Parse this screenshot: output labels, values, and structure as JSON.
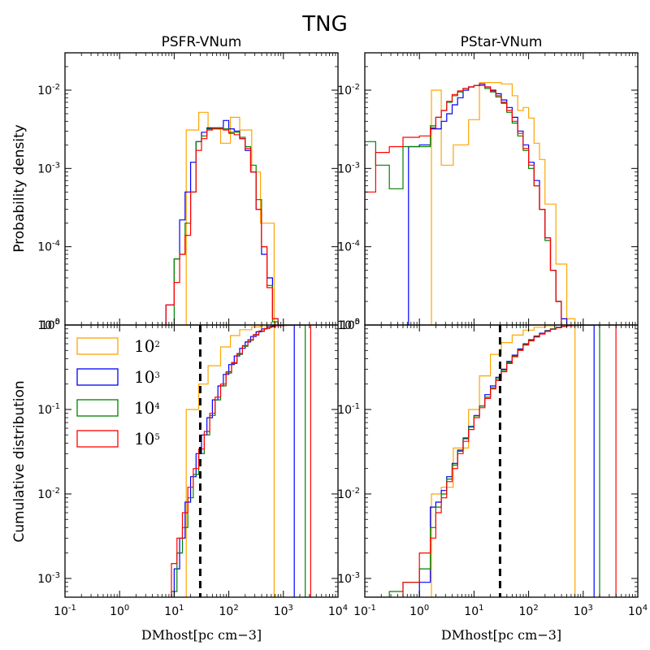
{
  "figure_title": "TNG",
  "panel_titles": [
    "PSFR-VNum",
    "PStar-VNum"
  ],
  "ylabel_top": "Probability density",
  "ylabel_bottom": "Cumulative distribution",
  "xlabel": "DMhost[pc cm−3]",
  "x_ticks": [
    {
      "base": "10",
      "exp": "-1"
    },
    {
      "base": "10",
      "exp": "0"
    },
    {
      "base": "10",
      "exp": "1"
    },
    {
      "base": "10",
      "exp": "2"
    },
    {
      "base": "10",
      "exp": "3"
    },
    {
      "base": "10",
      "exp": "4"
    }
  ],
  "pdf_y_ticks": [
    {
      "base": "10",
      "exp": "-2"
    },
    {
      "base": "10",
      "exp": "-3"
    },
    {
      "base": "10",
      "exp": "-4"
    },
    {
      "base": "10",
      "exp": "-5"
    }
  ],
  "cdf_y_ticks": [
    {
      "base": "10",
      "exp": "0"
    },
    {
      "base": "10",
      "exp": "-1"
    },
    {
      "base": "10",
      "exp": "-2"
    },
    {
      "base": "10",
      "exp": "-3"
    }
  ],
  "legend": [
    {
      "base": "10",
      "exp": "2",
      "color": "#ffa500"
    },
    {
      "base": "10",
      "exp": "3",
      "color": "#0000ff"
    },
    {
      "base": "10",
      "exp": "4",
      "color": "#008000"
    },
    {
      "base": "10",
      "exp": "5",
      "color": "#ff0000"
    }
  ],
  "chart_data": {
    "type": "step-histogram",
    "x_scale": "log",
    "y_scale": "log",
    "xlim": [
      0.1,
      10000
    ],
    "pdf_ylim": [
      1e-05,
      0.03
    ],
    "cdf_ylim": [
      0.0006,
      1.0
    ],
    "vline_x": 30,
    "panels": [
      {
        "title": "PSFR-VNum",
        "pdf": [
          {
            "name": "10^2",
            "color": "#ffa500",
            "edges": [
              1.22,
              1.45,
              1.62,
              1.85,
              2.03,
              2.2,
              2.42,
              2.58,
              2.83
            ],
            "values": [
              0.0031,
              0.0052,
              0.0032,
              0.0021,
              0.0045,
              0.0031,
              0.0009,
              0.0002
            ]
          },
          {
            "name": "10^3",
            "color": "#0000ff",
            "edges": [
              0.85,
              1.0,
              1.1,
              1.2,
              1.3,
              1.4,
              1.5,
              1.6,
              1.7,
              1.8,
              1.9,
              2.0,
              2.1,
              2.2,
              2.3,
              2.4,
              2.5,
              2.6,
              2.7,
              2.8,
              2.9,
              3.0,
              3.12
            ],
            "values": [
              1.8e-05,
              7e-05,
              0.00022,
              0.0005,
              0.0012,
              0.0022,
              0.0029,
              0.0033,
              0.0033,
              0.0033,
              0.0041,
              0.0032,
              0.003,
              0.0024,
              0.0017,
              0.0009,
              0.0003,
              8e-05,
              4e-05,
              1.2e-05,
              6e-06,
              2e-06
            ]
          },
          {
            "name": "10^4",
            "color": "#008000",
            "edges": [
              0.85,
              1.0,
              1.1,
              1.2,
              1.3,
              1.4,
              1.5,
              1.6,
              1.7,
              1.8,
              1.9,
              2.0,
              2.1,
              2.2,
              2.3,
              2.4,
              2.5,
              2.6,
              2.7,
              2.8,
              2.9,
              3.0,
              3.13
            ],
            "values": [
              6e-06,
              7e-05,
              8e-05,
              0.0002,
              0.0005,
              0.0022,
              0.0026,
              0.0032,
              0.0033,
              0.0033,
              0.0032,
              0.0029,
              0.0029,
              0.0025,
              0.0019,
              0.0011,
              0.0004,
              0.0001,
              3.2e-05,
              1.1e-05,
              2e-06,
              1.5e-06
            ]
          },
          {
            "name": "10^5",
            "color": "#ff0000",
            "edges": [
              0.85,
              1.0,
              1.1,
              1.2,
              1.3,
              1.4,
              1.5,
              1.6,
              1.7,
              1.8,
              1.9,
              2.0,
              2.1,
              2.2,
              2.3,
              2.4,
              2.5,
              2.6,
              2.7,
              2.8,
              2.9,
              3.0,
              3.12
            ],
            "values": [
              1.8e-05,
              3.5e-05,
              8e-05,
              0.00014,
              0.0005,
              0.0017,
              0.0024,
              0.0031,
              0.0032,
              0.0032,
              0.0031,
              0.0028,
              0.0027,
              0.0024,
              0.0018,
              0.0009,
              0.0003,
              0.0001,
              3e-05,
              1.2e-05,
              3.5e-06,
              2e-06
            ]
          }
        ],
        "cdf": [
          {
            "name": "10^2",
            "color": "#ffa500",
            "edges": [
              1.22,
              1.45,
              1.62,
              1.85,
              2.03,
              2.2,
              2.42,
              2.58,
              2.83
            ],
            "values": [
              0.1,
              0.2,
              0.33,
              0.55,
              0.75,
              0.88,
              0.95,
              0.98
            ]
          },
          {
            "name": "10^3",
            "color": "#0000ff",
            "edges": [
              1.0,
              1.1,
              1.2,
              1.3,
              1.4,
              1.5,
              1.6,
              1.7,
              1.8,
              1.9,
              2.0,
              2.1,
              2.2,
              2.3,
              2.4,
              2.5,
              2.6,
              2.7,
              2.8,
              2.9,
              3.0,
              3.1,
              3.2
            ],
            "values": [
              0.0013,
              0.003,
              0.008,
              0.016,
              0.03,
              0.05,
              0.08,
              0.13,
              0.19,
              0.26,
              0.34,
              0.43,
              0.53,
              0.63,
              0.73,
              0.83,
              0.9,
              0.95,
              0.98,
              0.99,
              0.997,
              1.0
            ]
          },
          {
            "name": "10^4",
            "color": "#008000",
            "edges": [
              0.95,
              1.05,
              1.15,
              1.25,
              1.35,
              1.45,
              1.55,
              1.65,
              1.75,
              1.85,
              1.95,
              2.05,
              2.15,
              2.25,
              2.35,
              2.45,
              2.55,
              2.65,
              2.75,
              2.85,
              2.95,
              3.05,
              3.15,
              3.4
            ],
            "values": [
              0.0007,
              0.002,
              0.004,
              0.009,
              0.017,
              0.03,
              0.05,
              0.085,
              0.13,
              0.19,
              0.27,
              0.35,
              0.45,
              0.56,
              0.66,
              0.76,
              0.84,
              0.91,
              0.95,
              0.98,
              0.99,
              0.997,
              1.0
            ]
          },
          {
            "name": "10^5",
            "color": "#ff0000",
            "edges": [
              0.95,
              1.05,
              1.15,
              1.25,
              1.35,
              1.45,
              1.55,
              1.65,
              1.75,
              1.85,
              1.95,
              2.05,
              2.15,
              2.25,
              2.35,
              2.45,
              2.55,
              2.65,
              2.75,
              2.85,
              2.95,
              3.05,
              3.15,
              3.25,
              3.5
            ],
            "values": [
              0.0015,
              0.003,
              0.006,
              0.012,
              0.02,
              0.034,
              0.055,
              0.09,
              0.14,
              0.2,
              0.28,
              0.36,
              0.46,
              0.57,
              0.67,
              0.77,
              0.85,
              0.91,
              0.95,
              0.98,
              0.99,
              0.996,
              0.999,
              1.0
            ]
          }
        ]
      },
      {
        "title": "PStar-VNum",
        "pdf": [
          {
            "name": "10^2",
            "color": "#ffa500",
            "edges": [
              0.22,
              0.4,
              0.62,
              0.9,
              1.1,
              1.3,
              1.5,
              1.7,
              1.8,
              1.9,
              2.0,
              2.1,
              2.2,
              2.3,
              2.5,
              2.7,
              2.85
            ],
            "values": [
              0.01,
              0.0011,
              0.002,
              0.0042,
              0.0125,
              0.0125,
              0.012,
              0.0085,
              0.0055,
              0.006,
              0.0044,
              0.0021,
              0.0013,
              0.00035,
              6e-05,
              1.2e-05
            ]
          },
          {
            "name": "10^3",
            "color": "#0000ff",
            "edges": [
              -0.2,
              0.0,
              0.2,
              0.4,
              0.5,
              0.6,
              0.7,
              0.8,
              0.9,
              1.0,
              1.1,
              1.2,
              1.3,
              1.4,
              1.5,
              1.6,
              1.7,
              1.8,
              1.9,
              2.0,
              2.1,
              2.2,
              2.3,
              2.4,
              2.5,
              2.6,
              2.7,
              2.8,
              2.85
            ],
            "values": [
              0.0019,
              0.002,
              0.0032,
              0.004,
              0.005,
              0.0065,
              0.008,
              0.01,
              0.011,
              0.0115,
              0.012,
              0.011,
              0.01,
              0.009,
              0.0075,
              0.006,
              0.0045,
              0.003,
              0.002,
              0.0012,
              0.0007,
              0.0003,
              0.00013,
              5e-05,
              2e-05,
              1.2e-05,
              5e-06,
              2e-06
            ]
          },
          {
            "name": "10^4",
            "color": "#008000",
            "edges": [
              -1.0,
              -0.8,
              -0.55,
              -0.3,
              0.0,
              0.2,
              0.3,
              0.4,
              0.5,
              0.6,
              0.7,
              0.8,
              0.9,
              1.0,
              1.1,
              1.2,
              1.3,
              1.4,
              1.5,
              1.6,
              1.7,
              1.8,
              1.9,
              2.0,
              2.1,
              2.2,
              2.3,
              2.4,
              2.5,
              2.6,
              2.7,
              2.8,
              3.0
            ],
            "values": [
              0.0022,
              0.0011,
              0.00055,
              0.0019,
              0.0019,
              0.0035,
              0.0045,
              0.0055,
              0.007,
              0.0085,
              0.0095,
              0.0105,
              0.011,
              0.0115,
              0.0115,
              0.0105,
              0.0095,
              0.0082,
              0.0068,
              0.0052,
              0.0038,
              0.0026,
              0.0017,
              0.001,
              0.0006,
              0.0003,
              0.00012,
              5e-05,
              2e-05,
              7e-06,
              3e-06,
              1e-06
            ]
          },
          {
            "name": "10^5",
            "color": "#ff0000",
            "edges": [
              -1.0,
              -0.8,
              -0.55,
              -0.3,
              0.0,
              0.2,
              0.3,
              0.4,
              0.5,
              0.6,
              0.7,
              0.8,
              0.9,
              1.0,
              1.1,
              1.2,
              1.3,
              1.4,
              1.5,
              1.6,
              1.7,
              1.8,
              1.9,
              2.0,
              2.1,
              2.2,
              2.3,
              2.4,
              2.5,
              2.6,
              2.7,
              2.8,
              3.0
            ],
            "values": [
              0.0005,
              0.0016,
              0.0019,
              0.0025,
              0.0026,
              0.0033,
              0.0045,
              0.0055,
              0.0072,
              0.0088,
              0.0098,
              0.0105,
              0.011,
              0.0115,
              0.0115,
              0.011,
              0.0098,
              0.0085,
              0.007,
              0.0055,
              0.004,
              0.0028,
              0.0018,
              0.0011,
              0.0006,
              0.0003,
              0.00013,
              5e-05,
              2e-05,
              7e-06,
              3e-06,
              1e-06
            ]
          }
        ],
        "cdf": [
          {
            "name": "10^2",
            "color": "#ffa500",
            "edges": [
              0.22,
              0.4,
              0.62,
              0.9,
              1.1,
              1.3,
              1.5,
              1.7,
              1.9,
              2.1,
              2.3,
              2.5,
              2.7,
              2.85
            ],
            "values": [
              0.01,
              0.012,
              0.035,
              0.1,
              0.25,
              0.45,
              0.62,
              0.76,
              0.87,
              0.94,
              0.98,
              0.995,
              1.0
            ]
          },
          {
            "name": "10^3",
            "color": "#0000ff",
            "edges": [
              0.0,
              0.2,
              0.3,
              0.4,
              0.5,
              0.6,
              0.7,
              0.8,
              0.9,
              1.0,
              1.1,
              1.2,
              1.3,
              1.4,
              1.5,
              1.6,
              1.7,
              1.8,
              1.9,
              2.0,
              2.1,
              2.2,
              2.3,
              2.4,
              2.5,
              2.6,
              2.7,
              2.8,
              2.9,
              3.0,
              3.2
            ],
            "values": [
              0.0009,
              0.007,
              0.008,
              0.011,
              0.016,
              0.023,
              0.033,
              0.046,
              0.063,
              0.085,
              0.11,
              0.15,
              0.19,
              0.24,
              0.3,
              0.37,
              0.44,
              0.52,
              0.6,
              0.67,
              0.74,
              0.8,
              0.86,
              0.9,
              0.94,
              0.96,
              0.98,
              0.99,
              0.996,
              1.0
            ]
          },
          {
            "name": "10^4",
            "color": "#008000",
            "edges": [
              -1.0,
              -0.55,
              -0.3,
              0.0,
              0.2,
              0.3,
              0.4,
              0.5,
              0.6,
              0.7,
              0.8,
              0.9,
              1.0,
              1.1,
              1.2,
              1.3,
              1.4,
              1.5,
              1.6,
              1.7,
              1.8,
              1.9,
              2.0,
              2.1,
              2.2,
              2.3,
              2.4,
              2.5,
              2.6,
              2.7,
              2.8,
              2.9,
              3.0,
              3.3
            ],
            "values": [
              0.0006,
              0.0007,
              0.0009,
              0.0013,
              0.004,
              0.007,
              0.01,
              0.015,
              0.022,
              0.032,
              0.045,
              0.062,
              0.084,
              0.11,
              0.14,
              0.18,
              0.23,
              0.29,
              0.36,
              0.43,
              0.51,
              0.59,
              0.66,
              0.73,
              0.79,
              0.85,
              0.9,
              0.93,
              0.96,
              0.98,
              0.99,
              0.996,
              1.0
            ]
          },
          {
            "name": "10^5",
            "color": "#ff0000",
            "edges": [
              -0.3,
              0.0,
              0.2,
              0.3,
              0.4,
              0.5,
              0.6,
              0.7,
              0.8,
              0.9,
              1.0,
              1.1,
              1.2,
              1.3,
              1.4,
              1.5,
              1.6,
              1.7,
              1.8,
              1.9,
              2.0,
              2.1,
              2.2,
              2.3,
              2.4,
              2.5,
              2.6,
              2.7,
              2.8,
              2.9,
              3.0,
              3.1,
              3.6
            ],
            "values": [
              0.0009,
              0.002,
              0.003,
              0.006,
              0.009,
              0.014,
              0.02,
              0.03,
              0.042,
              0.058,
              0.08,
              0.105,
              0.135,
              0.175,
              0.22,
              0.28,
              0.35,
              0.42,
              0.5,
              0.58,
              0.65,
              0.72,
              0.78,
              0.84,
              0.89,
              0.93,
              0.96,
              0.98,
              0.99,
              0.995,
              0.998,
              1.0
            ]
          }
        ]
      }
    ]
  }
}
